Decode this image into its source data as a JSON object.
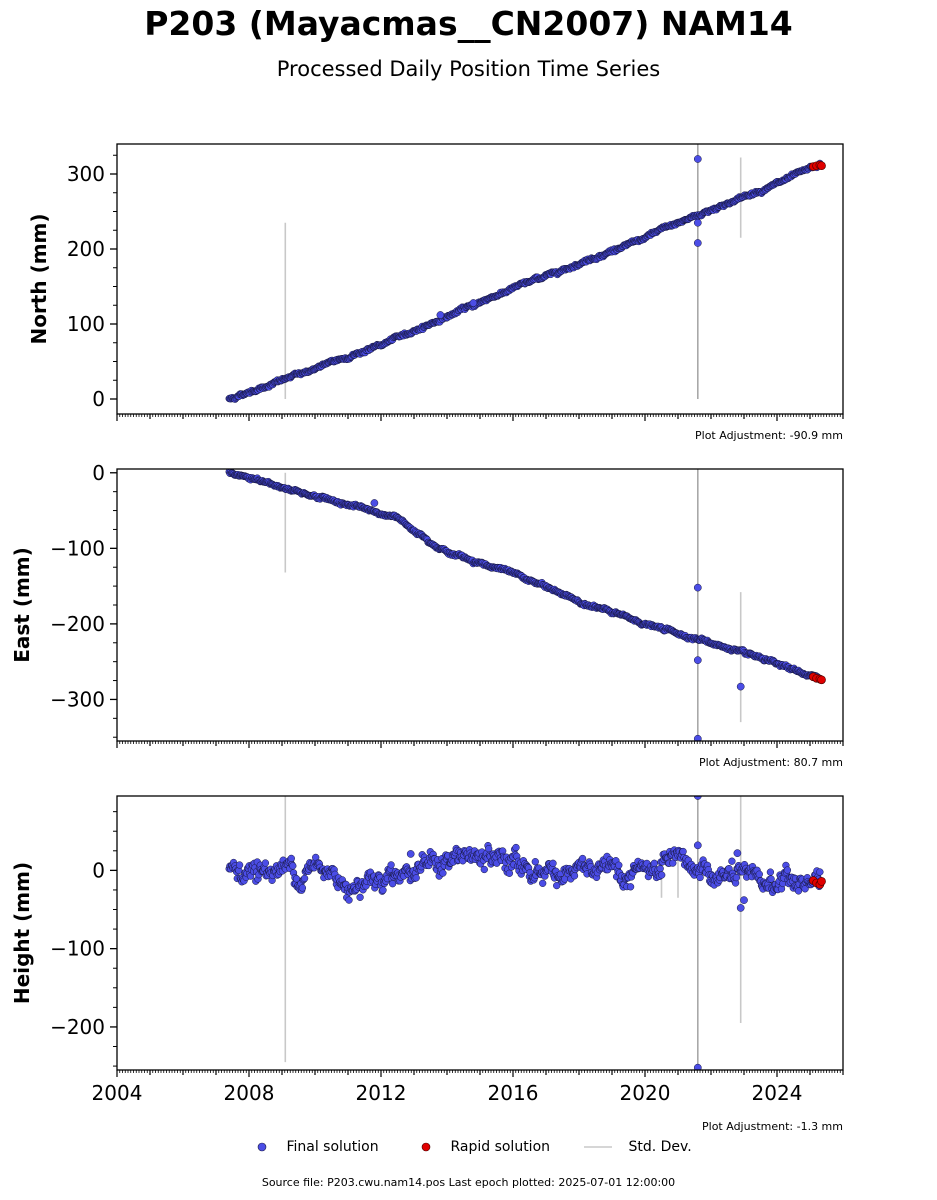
{
  "header": {
    "title": "P203 (Mayacmas__CN2007) NAM14",
    "subtitle": "Processed Daily Position Time Series"
  },
  "legend": {
    "final_label": "Final solution",
    "rapid_label": "Rapid solution",
    "stddev_label": "Std. Dev.",
    "final_color": "#4b4de6",
    "rapid_color": "#e00000",
    "stddev_color": "#c8c8c8"
  },
  "footer": {
    "source": "Source file: P203.cwu.nam14.pos  Last epoch plotted: 2025-07-01 12:00:00"
  },
  "chart_data": [
    {
      "type": "scatter",
      "ylabel": "North (mm)",
      "ylim": [
        -20,
        340
      ],
      "yticks": [
        0,
        100,
        200,
        300
      ],
      "xlim": [
        2004.0,
        2026.0
      ],
      "xticks": [
        "2004",
        "2008",
        "2012",
        "2016",
        "2020",
        "2024"
      ],
      "show_xticklabels": false,
      "adjustment": "Plot Adjustment: -90.9 mm",
      "start": [
        2007.4,
        0
      ],
      "end": [
        2025.3,
        312
      ],
      "trend": [
        [
          2007.4,
          0
        ],
        [
          2012.0,
          72
        ],
        [
          2016.0,
          148
        ],
        [
          2020.0,
          214
        ],
        [
          2020.6,
          228
        ],
        [
          2024.0,
          287
        ],
        [
          2025.3,
          312
        ]
      ],
      "scatter": 1.5,
      "outliers": [
        [
          2021.6,
          320
        ],
        [
          2021.6,
          235
        ],
        [
          2021.6,
          208
        ],
        [
          2013.8,
          112
        ],
        [
          2014.8,
          128
        ]
      ],
      "error_bars": [
        [
          2009.1,
          0,
          235
        ],
        [
          2021.6,
          0,
          340
        ],
        [
          2022.9,
          215,
          322
        ]
      ],
      "rapid": [
        [
          2025.1,
          310
        ],
        [
          2025.2,
          311
        ],
        [
          2025.3,
          312
        ],
        [
          2025.35,
          311
        ]
      ]
    },
    {
      "type": "scatter",
      "ylabel": "East (mm)",
      "ylim": [
        -355,
        5
      ],
      "yticks": [
        0,
        -100,
        -200,
        -300
      ],
      "xlim": [
        2004.0,
        2026.0
      ],
      "xticks": [
        "2004",
        "2008",
        "2012",
        "2016",
        "2020",
        "2024"
      ],
      "show_xticklabels": false,
      "adjustment": "Plot Adjustment: 80.7 mm",
      "start": [
        2007.4,
        0
      ],
      "end": [
        2025.3,
        -273
      ],
      "trend": [
        [
          2007.4,
          0
        ],
        [
          2009.5,
          -25
        ],
        [
          2011.0,
          -42
        ],
        [
          2012.5,
          -60
        ],
        [
          2014.0,
          -105
        ],
        [
          2016.0,
          -133
        ],
        [
          2018.0,
          -170
        ],
        [
          2020.0,
          -200
        ],
        [
          2022.0,
          -225
        ],
        [
          2025.3,
          -273
        ]
      ],
      "scatter": 1.5,
      "outliers": [
        [
          2021.6,
          -152
        ],
        [
          2021.6,
          -248
        ],
        [
          2021.6,
          -352
        ],
        [
          2022.9,
          -283
        ],
        [
          2011.8,
          -40
        ]
      ],
      "error_bars": [
        [
          2009.1,
          -132,
          0
        ],
        [
          2021.6,
          -355,
          5
        ],
        [
          2022.9,
          -330,
          -158
        ]
      ],
      "rapid": [
        [
          2025.1,
          -270
        ],
        [
          2025.2,
          -272
        ],
        [
          2025.3,
          -273
        ],
        [
          2025.35,
          -274
        ]
      ]
    },
    {
      "type": "scatter",
      "ylabel": "Height (mm)",
      "ylim": [
        -255,
        95
      ],
      "yticks": [
        0,
        -100,
        -200
      ],
      "xlim": [
        2004.0,
        2026.0
      ],
      "xticks": [
        "2004",
        "2008",
        "2012",
        "2016",
        "2020",
        "2024"
      ],
      "show_xticklabels": true,
      "adjustment": "Plot Adjustment: -1.3 mm",
      "start": [
        2007.4,
        5
      ],
      "end": [
        2025.3,
        -15
      ],
      "trend": [
        [
          2007.4,
          5
        ],
        [
          2008.5,
          0
        ],
        [
          2010.0,
          2
        ],
        [
          2011.0,
          -15
        ],
        [
          2012.5,
          0
        ],
        [
          2014.5,
          15
        ],
        [
          2015.5,
          12
        ],
        [
          2017.0,
          0
        ],
        [
          2019.0,
          -5
        ],
        [
          2020.5,
          0
        ],
        [
          2021.6,
          0
        ],
        [
          2022.5,
          -10
        ],
        [
          2023.5,
          -15
        ],
        [
          2025.3,
          -15
        ]
      ],
      "scatter": 10,
      "outliers": [
        [
          2021.6,
          95
        ],
        [
          2021.6,
          32
        ],
        [
          2021.6,
          -252
        ],
        [
          2022.9,
          -48
        ],
        [
          2023.0,
          -38
        ],
        [
          2022.8,
          22
        ],
        [
          2012.9,
          21
        ]
      ],
      "error_bars": [
        [
          2009.1,
          -245,
          95
        ],
        [
          2021.6,
          -255,
          95
        ],
        [
          2022.9,
          -195,
          95
        ],
        [
          2020.5,
          -35,
          20
        ],
        [
          2021.0,
          -35,
          22
        ]
      ],
      "rapid": [
        [
          2025.1,
          -13
        ],
        [
          2025.2,
          -16
        ],
        [
          2025.3,
          -18
        ],
        [
          2025.35,
          -14
        ]
      ]
    }
  ]
}
